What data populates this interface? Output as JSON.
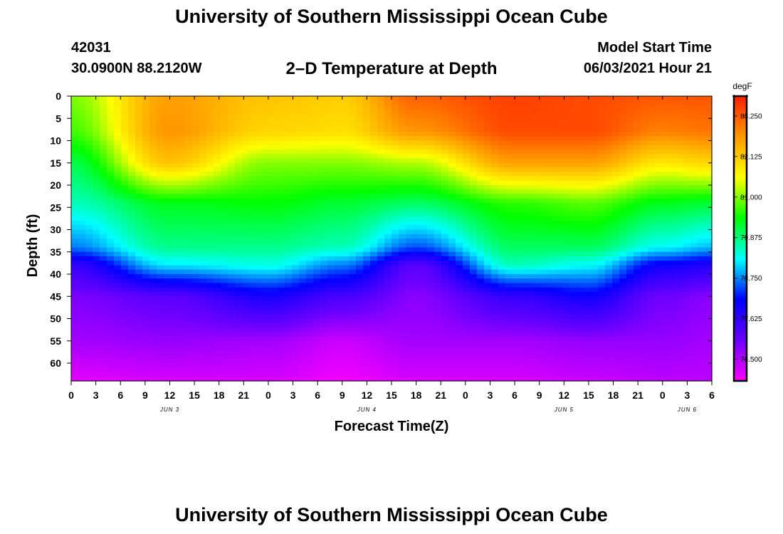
{
  "header": {
    "main_title": "University of Southern Mississippi Ocean Cube",
    "footer_title": "University of Southern Mississippi Ocean Cube",
    "station_id": "42031",
    "station_coords": "30.0900N  88.2120W",
    "model_start_label": "Model Start Time",
    "model_start_value": "06/03/2021 Hour 21"
  },
  "chart_data": {
    "type": "heatmap",
    "title": "2–D Temperature at Depth",
    "xlabel": "Forecast Time(Z)",
    "ylabel": "Depth (ft)",
    "x_unit": "forecast hour",
    "x_tick_labels": [
      "0",
      "3",
      "6",
      "9",
      "12",
      "15",
      "18",
      "21",
      "0",
      "3",
      "6",
      "9",
      "12",
      "15",
      "18",
      "21",
      "0",
      "3",
      "6",
      "9",
      "12",
      "15",
      "18",
      "21",
      "0",
      "3",
      "6"
    ],
    "x_date_labels": [
      {
        "label": "JUN 3",
        "tick_index": 4
      },
      {
        "label": "JUN 4",
        "tick_index": 12
      },
      {
        "label": "JUN 5",
        "tick_index": 20
      },
      {
        "label": "JUN 6",
        "tick_index": 25
      }
    ],
    "y_range": [
      0,
      64
    ],
    "y_ticks": [
      0,
      5,
      10,
      15,
      20,
      25,
      30,
      35,
      40,
      45,
      50,
      55,
      60
    ],
    "y_inverted": true,
    "colorbar": {
      "unit": "degF",
      "min": 75.9,
      "max": 83.8,
      "tick_values": [
        83.25,
        82.125,
        81.0,
        79.875,
        78.75,
        77.625,
        76.5
      ],
      "tick_labels": [
        "83.250",
        "82.125",
        "81.000",
        "79.875",
        "78.750",
        "77.625",
        "76.500"
      ],
      "colors": [
        "#ff00ff",
        "#6a00ff",
        "#0000ff",
        "#00ffff",
        "#00ff00",
        "#ffff00",
        "#ff9900",
        "#ff1f00"
      ]
    },
    "z_unit": "degF",
    "depth_samples_ft": [
      0,
      8,
      15,
      24,
      34,
      38,
      45,
      55,
      64
    ],
    "temperature_profiles": [
      {
        "time_index": 0,
        "label": "Jun 3 00Z",
        "temps": [
          81.0,
          80.7,
          80.1,
          79.6,
          78.7,
          77.6,
          76.9,
          76.6,
          76.1
        ]
      },
      {
        "time_index": 4,
        "label": "Jun 3 12Z",
        "temps": [
          82.6,
          82.7,
          82.2,
          80.3,
          79.8,
          79.2,
          77.2,
          76.7,
          76.2
        ]
      },
      {
        "time_index": 8,
        "label": "Jun 4 00Z",
        "temps": [
          82.2,
          82.0,
          81.0,
          80.4,
          79.8,
          79.4,
          77.9,
          76.6,
          76.2
        ]
      },
      {
        "time_index": 11,
        "label": "Jun 4 09Z",
        "temps": [
          82.1,
          81.9,
          81.0,
          80.2,
          79.6,
          78.7,
          77.4,
          76.3,
          76.0
        ]
      },
      {
        "time_index": 14,
        "label": "Jun 4 18Z",
        "temps": [
          83.2,
          82.7,
          81.2,
          80.0,
          78.5,
          77.2,
          76.8,
          76.6,
          76.2
        ]
      },
      {
        "time_index": 18,
        "label": "Jun 5 06Z",
        "temps": [
          83.5,
          83.4,
          82.6,
          80.6,
          80.0,
          79.6,
          77.6,
          76.6,
          76.2
        ]
      },
      {
        "time_index": 21,
        "label": "Jun 5 15Z",
        "temps": [
          83.4,
          83.4,
          82.6,
          80.8,
          80.0,
          79.3,
          78.0,
          76.7,
          76.3
        ]
      },
      {
        "time_index": 24,
        "label": "Jun 6 00Z",
        "temps": [
          83.3,
          82.9,
          81.8,
          80.3,
          79.3,
          78.0,
          77.0,
          76.7,
          76.4
        ]
      },
      {
        "time_index": 26,
        "label": "Jun 6 06Z",
        "temps": [
          83.3,
          83.0,
          82.0,
          80.2,
          79.0,
          77.8,
          76.8,
          76.6,
          76.4
        ]
      }
    ]
  }
}
